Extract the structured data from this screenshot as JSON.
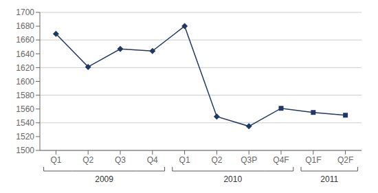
{
  "chart_data": {
    "type": "line",
    "categories": [
      "Q1",
      "Q2",
      "Q3",
      "Q4",
      "Q1",
      "Q2",
      "Q3P",
      "Q4F",
      "Q1F",
      "Q2F"
    ],
    "values": [
      1669,
      1621,
      1647,
      1644,
      1680,
      1549,
      1535,
      1561,
      1555,
      1551
    ],
    "year_groups": [
      {
        "label": "2009",
        "positions": [
          0,
          1,
          2,
          3
        ]
      },
      {
        "label": "2010",
        "positions": [
          4,
          5,
          6,
          7
        ]
      },
      {
        "label": "2011",
        "positions": [
          8,
          9
        ]
      }
    ],
    "marker": [
      "diamond",
      "diamond",
      "diamond",
      "diamond",
      "diamond",
      "diamond",
      "diamond",
      "square",
      "square",
      "square"
    ],
    "color": "#1F3864",
    "ylim": [
      1500,
      1700
    ],
    "yticks": [
      1500,
      1520,
      1540,
      1560,
      1580,
      1600,
      1620,
      1640,
      1660,
      1680,
      1700
    ],
    "grid": true
  }
}
